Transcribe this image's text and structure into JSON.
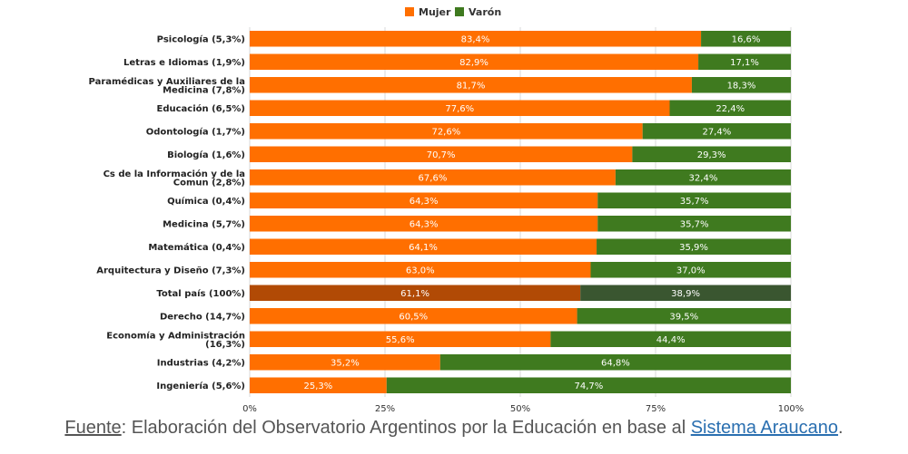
{
  "chart_data": {
    "type": "bar",
    "orientation": "horizontal",
    "stacked": true,
    "percent_stacked": true,
    "categories": [
      "Psicología (5,3%)",
      "Letras e Idiomas (1,9%)",
      [
        "Paramédicas y Auxiliares de la",
        "Medicina (7,8%)"
      ],
      "Educación (6,5%)",
      "Odontología (1,7%)",
      "Biología (1,6%)",
      [
        "Cs de la Información y de la",
        "Comun (2,8%)"
      ],
      "Química (0,4%)",
      "Medicina (5,7%)",
      "Matemática (0,4%)",
      "Arquitectura y Diseño (7,3%)",
      "Total país (100%)",
      "Derecho (14,7%)",
      [
        "Economía y Administración",
        "(16,3%)"
      ],
      "Industrias (4,2%)",
      "Ingeniería (5,6%)"
    ],
    "series": [
      {
        "name": "Mujer",
        "color": "#ff6f00",
        "highlight_color": "#b14a05",
        "values": [
          83.4,
          82.9,
          81.7,
          77.6,
          72.6,
          70.7,
          67.6,
          64.3,
          64.3,
          64.1,
          63.0,
          61.1,
          60.5,
          55.6,
          35.2,
          25.3
        ],
        "labels": [
          "83,4%",
          "82,9%",
          "81,7%",
          "77,6%",
          "72,6%",
          "70,7%",
          "67,6%",
          "64,3%",
          "64,3%",
          "64,1%",
          "63,0%",
          "61,1%",
          "60,5%",
          "55,6%",
          "35,2%",
          "25,3%"
        ]
      },
      {
        "name": "Varón",
        "color": "#3f7a1f",
        "highlight_color": "#3a5630",
        "values": [
          16.6,
          17.1,
          18.3,
          22.4,
          27.4,
          29.3,
          32.4,
          35.7,
          35.7,
          35.9,
          37.0,
          38.9,
          39.5,
          44.4,
          64.8,
          74.7
        ],
        "labels": [
          "16,6%",
          "17,1%",
          "18,3%",
          "22,4%",
          "27,4%",
          "29,3%",
          "32,4%",
          "35,7%",
          "35,7%",
          "35,9%",
          "37,0%",
          "38,9%",
          "39,5%",
          "44,4%",
          "64,8%",
          "74,7%"
        ]
      }
    ],
    "highlight_category_index": 11,
    "x_ticks": [
      0,
      25,
      50,
      75,
      100
    ],
    "x_tick_labels": [
      "0%",
      "25%",
      "50%",
      "75%",
      "100%"
    ],
    "xlim": [
      0,
      100
    ],
    "grid": true,
    "legend_position": "top-center"
  },
  "footer": {
    "source_label": "Fuente",
    "text": ": Elaboración del Observatorio Argentinos por la Educación en base al ",
    "link_text": "Sistema Araucano",
    "end": "."
  }
}
